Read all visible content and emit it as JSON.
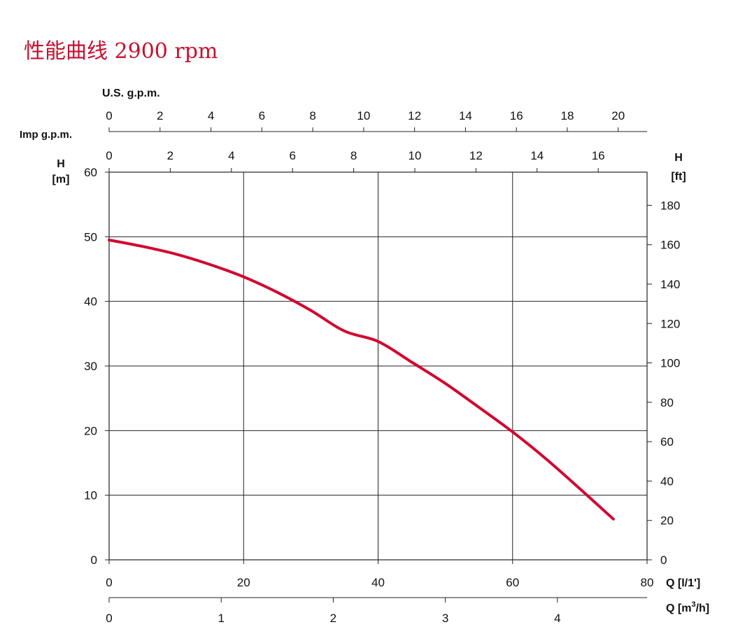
{
  "title": "性能曲线 2900 rpm",
  "colors": {
    "curve": "#d2062f",
    "title": "#c8102e",
    "grid": "#222222",
    "text": "#111111"
  },
  "chart_data": {
    "type": "line",
    "title": "性能曲线 2900 rpm",
    "grid": true,
    "legend": "none",
    "axes": {
      "bottom_primary": {
        "label": "Q [l/1']",
        "range": [
          0,
          80
        ],
        "ticks": [
          0,
          20,
          40,
          60,
          80
        ],
        "tick_labels": [
          "0",
          "20",
          "40",
          "60",
          "80"
        ]
      },
      "bottom_secondary": {
        "label": "Q [m³/h]",
        "label_base": "Q [m",
        "label_sup": "3",
        "label_tail": "/h]",
        "ticks": [
          0,
          1,
          2,
          3,
          4
        ],
        "tick_labels": [
          "0",
          "1",
          "2",
          "3",
          "4"
        ]
      },
      "top_us": {
        "label": "U.S. g.p.m.",
        "ticks": [
          0,
          2,
          4,
          6,
          8,
          10,
          12,
          14,
          16,
          18,
          20
        ],
        "tick_labels": [
          "0",
          "2",
          "4",
          "6",
          "8",
          "10",
          "12",
          "14",
          "16",
          "18",
          "20"
        ]
      },
      "top_imp": {
        "label": "Imp g.p.m.",
        "ticks": [
          0,
          2,
          4,
          6,
          8,
          10,
          12,
          14,
          16
        ],
        "tick_labels": [
          "0",
          "2",
          "4",
          "6",
          "8",
          "10",
          "12",
          "14",
          "16"
        ]
      },
      "left": {
        "label_line1": "H",
        "label_line2": "[m]",
        "range": [
          0,
          60
        ],
        "ticks": [
          0,
          10,
          20,
          30,
          40,
          50,
          60
        ],
        "tick_labels": [
          "0",
          "10",
          "20",
          "30",
          "40",
          "50",
          "60"
        ]
      },
      "right": {
        "label_line1": "H",
        "label_line2": "[ft]",
        "ticks": [
          0,
          20,
          40,
          60,
          80,
          100,
          120,
          140,
          160,
          180
        ],
        "tick_labels": [
          "0",
          "20",
          "40",
          "60",
          "80",
          "100",
          "120",
          "140",
          "160",
          "180"
        ]
      }
    },
    "series": [
      {
        "x": [
          0,
          5,
          10,
          15,
          20,
          25,
          30,
          35,
          40,
          45,
          50,
          55,
          60,
          65,
          70,
          75
        ],
        "y": [
          49.5,
          48.5,
          47.3,
          45.7,
          43.8,
          41.4,
          38.6,
          35.4,
          33.8,
          30.6,
          27.3,
          23.6,
          19.8,
          15.6,
          11.0,
          6.3
        ]
      }
    ]
  }
}
